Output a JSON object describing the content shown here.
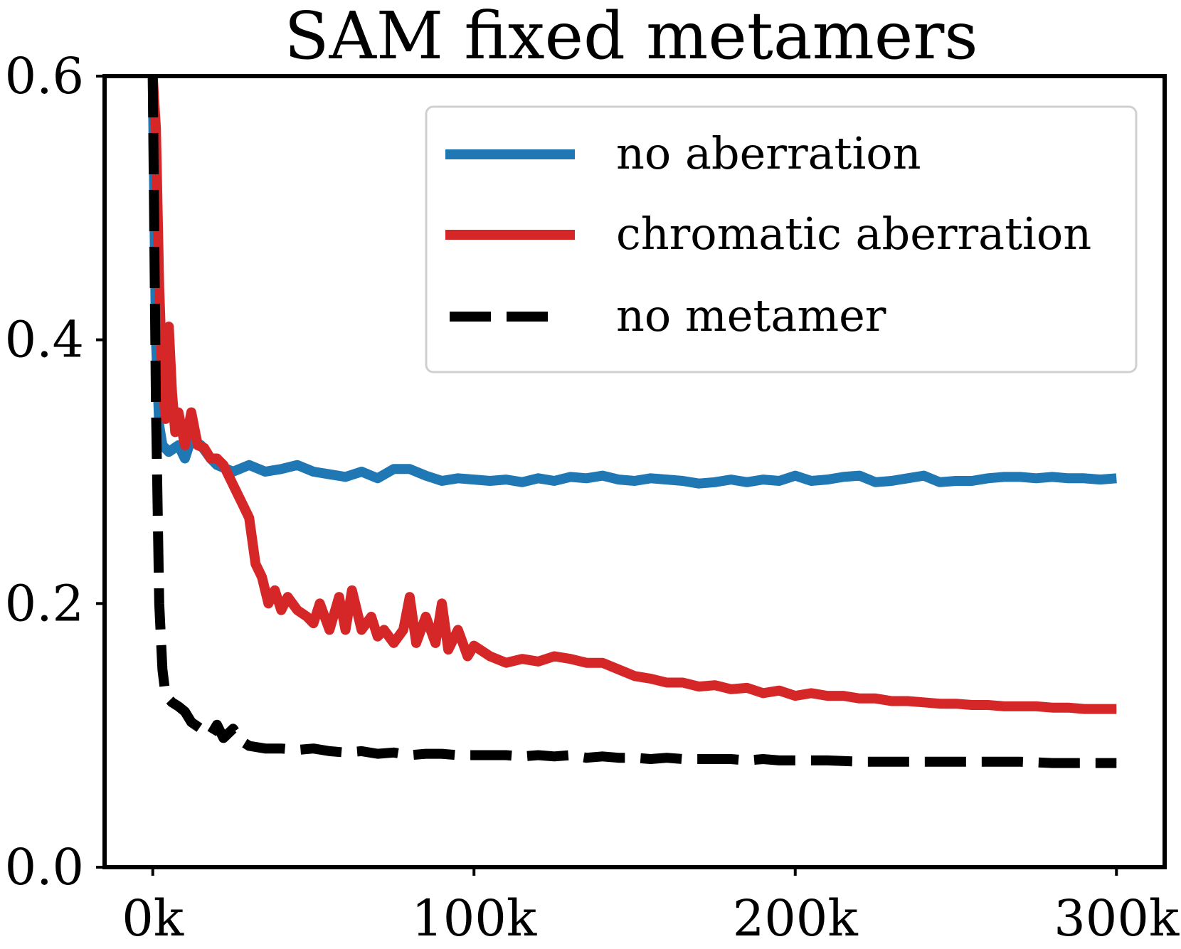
{
  "chart_data": {
    "type": "line",
    "title": "SAM fixed metamers",
    "xlabel": "",
    "ylabel": "",
    "xlim": [
      -15000,
      315000
    ],
    "ylim": [
      0,
      0.6
    ],
    "grid": false,
    "legend_position": "top-right",
    "x_ticks": [
      {
        "value": 0,
        "label": "0k"
      },
      {
        "value": 100000,
        "label": "100k"
      },
      {
        "value": 200000,
        "label": "200k"
      },
      {
        "value": 300000,
        "label": "300k"
      }
    ],
    "y_ticks": [
      {
        "value": 0.0,
        "label": "0.0"
      },
      {
        "value": 0.2,
        "label": "0.2"
      },
      {
        "value": 0.4,
        "label": "0.4"
      },
      {
        "value": 0.6,
        "label": "0.6"
      }
    ],
    "series": [
      {
        "name": "no aberration",
        "color": "#1f77b4",
        "style": "solid",
        "x": [
          0,
          1000,
          2000,
          3000,
          5000,
          8000,
          10000,
          12000,
          15000,
          18000,
          20000,
          25000,
          30000,
          35000,
          40000,
          45000,
          50000,
          55000,
          60000,
          65000,
          70000,
          75000,
          80000,
          85000,
          90000,
          95000,
          100000,
          105000,
          110000,
          115000,
          120000,
          125000,
          130000,
          135000,
          140000,
          145000,
          150000,
          155000,
          160000,
          165000,
          170000,
          175000,
          180000,
          185000,
          190000,
          195000,
          200000,
          205000,
          210000,
          215000,
          220000,
          225000,
          230000,
          235000,
          240000,
          245000,
          250000,
          255000,
          260000,
          265000,
          270000,
          275000,
          280000,
          285000,
          290000,
          295000,
          300000
        ],
        "y": [
          0.6,
          0.4,
          0.335,
          0.32,
          0.315,
          0.32,
          0.31,
          0.325,
          0.32,
          0.31,
          0.305,
          0.3,
          0.305,
          0.3,
          0.302,
          0.305,
          0.3,
          0.298,
          0.296,
          0.3,
          0.295,
          0.302,
          0.302,
          0.297,
          0.293,
          0.295,
          0.294,
          0.293,
          0.294,
          0.292,
          0.295,
          0.293,
          0.296,
          0.295,
          0.297,
          0.294,
          0.293,
          0.295,
          0.294,
          0.293,
          0.291,
          0.292,
          0.294,
          0.292,
          0.294,
          0.293,
          0.297,
          0.293,
          0.294,
          0.296,
          0.297,
          0.292,
          0.293,
          0.295,
          0.297,
          0.292,
          0.293,
          0.293,
          0.295,
          0.296,
          0.296,
          0.295,
          0.296,
          0.295,
          0.295,
          0.294,
          0.295
        ]
      },
      {
        "name": "chromatic aberration",
        "color": "#d62728",
        "style": "solid",
        "x": [
          0,
          1000,
          2000,
          3000,
          4000,
          5000,
          6000,
          7000,
          8000,
          10000,
          12000,
          14000,
          16000,
          18000,
          20000,
          22000,
          25000,
          28000,
          30000,
          32000,
          34000,
          36000,
          38000,
          40000,
          42000,
          45000,
          48000,
          50000,
          52000,
          55000,
          58000,
          60000,
          62000,
          65000,
          68000,
          70000,
          72000,
          75000,
          78000,
          80000,
          82000,
          85000,
          88000,
          90000,
          92000,
          95000,
          98000,
          100000,
          105000,
          110000,
          115000,
          120000,
          125000,
          130000,
          135000,
          140000,
          145000,
          150000,
          155000,
          160000,
          165000,
          170000,
          175000,
          180000,
          185000,
          190000,
          195000,
          200000,
          205000,
          210000,
          215000,
          220000,
          225000,
          230000,
          235000,
          240000,
          245000,
          250000,
          255000,
          260000,
          265000,
          270000,
          275000,
          280000,
          285000,
          290000,
          295000,
          300000
        ],
        "y": [
          0.6,
          0.56,
          0.44,
          0.37,
          0.34,
          0.41,
          0.36,
          0.33,
          0.345,
          0.32,
          0.345,
          0.32,
          0.318,
          0.31,
          0.31,
          0.305,
          0.29,
          0.275,
          0.265,
          0.23,
          0.22,
          0.2,
          0.21,
          0.195,
          0.205,
          0.195,
          0.19,
          0.185,
          0.2,
          0.18,
          0.205,
          0.18,
          0.21,
          0.18,
          0.19,
          0.175,
          0.18,
          0.17,
          0.18,
          0.205,
          0.17,
          0.19,
          0.17,
          0.2,
          0.165,
          0.18,
          0.16,
          0.168,
          0.16,
          0.155,
          0.158,
          0.156,
          0.16,
          0.158,
          0.155,
          0.155,
          0.15,
          0.145,
          0.143,
          0.14,
          0.14,
          0.137,
          0.138,
          0.135,
          0.136,
          0.132,
          0.134,
          0.13,
          0.132,
          0.13,
          0.13,
          0.128,
          0.128,
          0.126,
          0.126,
          0.125,
          0.124,
          0.124,
          0.123,
          0.123,
          0.122,
          0.122,
          0.122,
          0.121,
          0.121,
          0.12,
          0.12,
          0.12
        ]
      },
      {
        "name": "no metamer",
        "color": "#000000",
        "style": "dashed",
        "x": [
          0,
          1000,
          2000,
          3000,
          4000,
          6000,
          8000,
          10000,
          12000,
          15000,
          18000,
          20000,
          22000,
          25000,
          28000,
          30000,
          35000,
          40000,
          45000,
          50000,
          55000,
          60000,
          65000,
          70000,
          75000,
          80000,
          85000,
          90000,
          95000,
          100000,
          105000,
          110000,
          115000,
          120000,
          125000,
          130000,
          135000,
          140000,
          145000,
          150000,
          155000,
          160000,
          165000,
          170000,
          175000,
          180000,
          185000,
          190000,
          195000,
          200000,
          210000,
          220000,
          230000,
          240000,
          250000,
          260000,
          270000,
          280000,
          290000,
          300000
        ],
        "y": [
          0.6,
          0.35,
          0.2,
          0.15,
          0.13,
          0.125,
          0.122,
          0.118,
          0.11,
          0.105,
          0.1,
          0.108,
          0.098,
          0.105,
          0.095,
          0.092,
          0.09,
          0.09,
          0.089,
          0.09,
          0.088,
          0.087,
          0.088,
          0.086,
          0.087,
          0.085,
          0.086,
          0.086,
          0.085,
          0.085,
          0.085,
          0.085,
          0.084,
          0.085,
          0.084,
          0.085,
          0.083,
          0.084,
          0.083,
          0.083,
          0.082,
          0.083,
          0.082,
          0.082,
          0.082,
          0.082,
          0.081,
          0.082,
          0.081,
          0.081,
          0.081,
          0.08,
          0.08,
          0.08,
          0.08,
          0.08,
          0.08,
          0.079,
          0.079,
          0.079
        ]
      }
    ]
  }
}
